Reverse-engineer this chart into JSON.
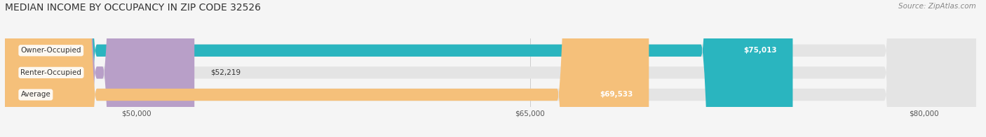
{
  "title": "MEDIAN INCOME BY OCCUPANCY IN ZIP CODE 32526",
  "source": "Source: ZipAtlas.com",
  "categories": [
    "Owner-Occupied",
    "Renter-Occupied",
    "Average"
  ],
  "values": [
    75013,
    52219,
    69533
  ],
  "bar_colors": [
    "#2ab5bf",
    "#b89fc8",
    "#f5c07a"
  ],
  "label_colors": [
    "#ffffff",
    "#333333",
    "#ffffff"
  ],
  "value_labels": [
    "$75,013",
    "$52,219",
    "$69,533"
  ],
  "xlim": [
    45000,
    82000
  ],
  "xticks": [
    50000,
    65000,
    80000
  ],
  "xtick_labels": [
    "$50,000",
    "$65,000",
    "$80,000"
  ],
  "bar_height": 0.55,
  "background_color": "#f5f5f5",
  "bar_bg_color": "#e4e4e4",
  "title_fontsize": 10,
  "source_fontsize": 7.5,
  "label_fontsize": 7.5,
  "value_fontsize": 7.5
}
